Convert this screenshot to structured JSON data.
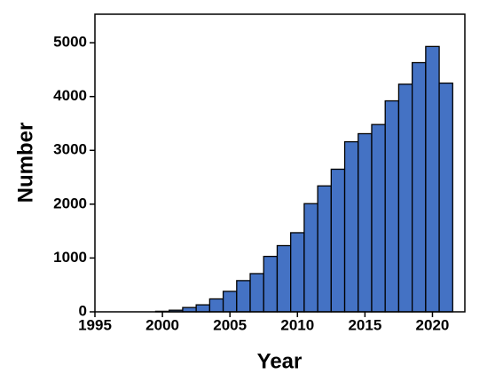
{
  "chart_data": {
    "type": "bar",
    "x_label": "Year",
    "y_label": "Number",
    "x": [
      2000,
      2001,
      2002,
      2003,
      2004,
      2005,
      2006,
      2007,
      2008,
      2009,
      2010,
      2011,
      2012,
      2013,
      2014,
      2015,
      2016,
      2017,
      2018,
      2019,
      2020,
      2021
    ],
    "values": [
      10,
      30,
      80,
      130,
      240,
      380,
      580,
      710,
      1030,
      1230,
      1470,
      2010,
      2340,
      2650,
      3160,
      3310,
      3480,
      3920,
      4230,
      4630,
      4930,
      4250
    ],
    "color": "#4472c4",
    "xlim": [
      1995,
      2022.4
    ],
    "xticks": [
      1995,
      2000,
      2005,
      2010,
      2015,
      2020
    ],
    "ylim": [
      0,
      5530
    ],
    "yticks": [
      0,
      1000,
      2000,
      3000,
      4000,
      5000
    ]
  }
}
